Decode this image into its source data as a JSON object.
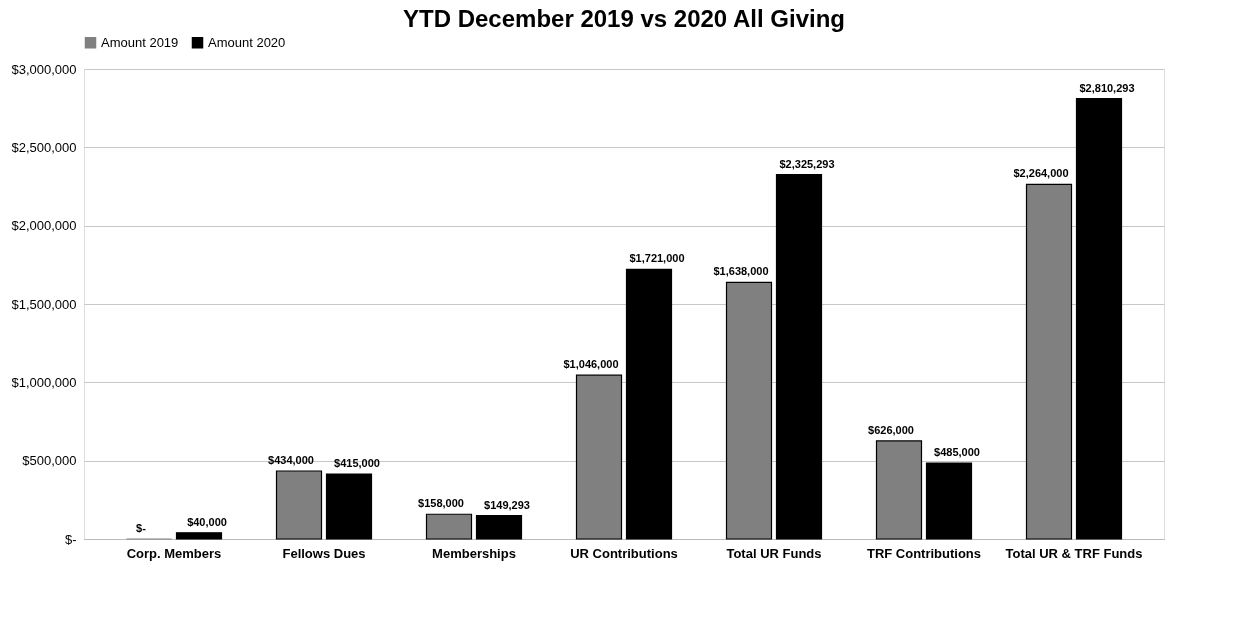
{
  "chart_data": {
    "type": "bar",
    "title": "YTD December 2019 vs 2020 All Giving",
    "categories": [
      "Corp. Members",
      "Fellows Dues",
      "Memberships",
      "UR Contributions",
      "Total UR Funds",
      "TRF Contributions",
      "Total UR & TRF Funds"
    ],
    "series": [
      {
        "name": "Amount 2019",
        "color": "#808080",
        "values": [
          0,
          434000,
          158000,
          1046000,
          1638000,
          626000,
          2264000
        ],
        "value_labels": [
          "$-",
          "$434,000",
          "$158,000",
          "$1,046,000",
          "$1,638,000",
          "$626,000",
          "$2,264,000"
        ]
      },
      {
        "name": "Amount 2020",
        "color": "#000000",
        "values": [
          40000,
          415000,
          149293,
          1721000,
          2325293,
          485000,
          2810293
        ],
        "value_labels": [
          "$40,000",
          "$415,000",
          "$149,293",
          "$1,721,000",
          "$2,325,293",
          "$485,000",
          "$2,810,293"
        ]
      }
    ],
    "ylim": [
      0,
      3000000
    ],
    "yticks": [
      {
        "value": 0,
        "label": "$-"
      },
      {
        "value": 500000,
        "label": "$500,000"
      },
      {
        "value": 1000000,
        "label": "$1,000,000"
      },
      {
        "value": 1500000,
        "label": "$1,500,000"
      },
      {
        "value": 2000000,
        "label": "$2,000,000"
      },
      {
        "value": 2500000,
        "label": "$2,500,000"
      },
      {
        "value": 3000000,
        "label": "$3,000,000"
      }
    ],
    "grid": "y",
    "legend": "top"
  }
}
